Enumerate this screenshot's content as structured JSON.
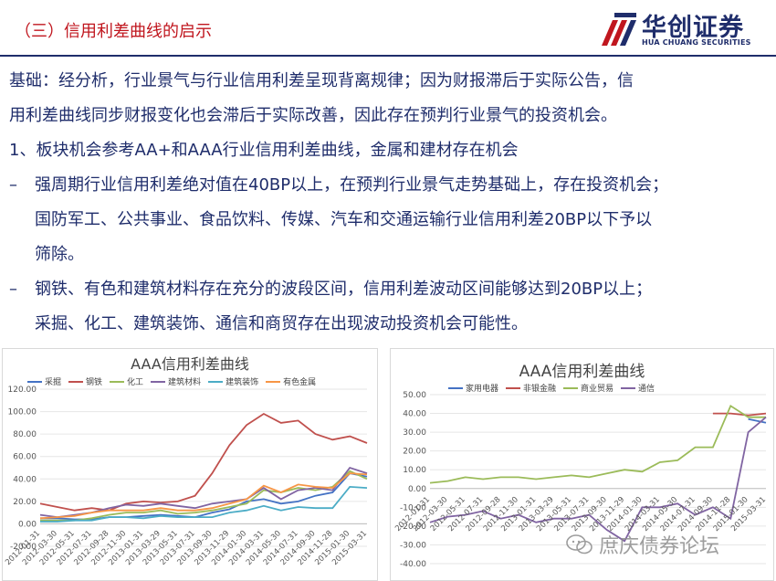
{
  "header": {
    "title": "（三）信用利差曲线的启示",
    "logo_cn": "华创证券",
    "logo_en": "HUA CHUANG SECURITIES"
  },
  "content": {
    "para1_line1": "基础：经分析，行业景气与行业信用利差呈现背离规律；因为财报滞后于实际公告，信",
    "para1_line2": "用利差曲线同步财报变化也会滞后于实际改善，因此存在预判行业景气的投资机会。",
    "heading1": "1、板块机会参考AA+和AAA行业信用利差曲线，金属和建材存在机会",
    "bullet_mark": "–",
    "bullet1_line1": "强周期行业信用利差绝对值在40BP以上，在预判行业景气走势基础上，存在投资机会；",
    "bullet1_line2": "国防军工、公共事业、食品饮料、传媒、汽车和交通运输行业信用利差20BP以下予以",
    "bullet1_line3": "筛除。",
    "bullet2_line1": "钢铁、有色和建筑材料存在充分的波段区间，信用利差波动区间能够达到20BP以上；",
    "bullet2_line2": "采掘、化工、建筑装饰、通信和商贸存在出现波动投资机会可能性。"
  },
  "watermark": "庶庆债券论坛",
  "chart_data": [
    {
      "type": "line",
      "title": "AAA信用利差曲线",
      "ylim": [
        -20,
        120
      ],
      "yticks": [
        "120.00",
        "100.00",
        "80.00",
        "60.00",
        "40.00",
        "20.00",
        "0.00",
        "-20.00"
      ],
      "x": [
        "2012-01-31",
        "2012-03-30",
        "2012-05-31",
        "2012-07-31",
        "2012-09-28",
        "2012-11-30",
        "2013-01-31",
        "2013-03-29",
        "2013-05-31",
        "2013-07-31",
        "2013-09-30",
        "2013-11-29",
        "2014-01-30",
        "2014-03-31",
        "2014-05-30",
        "2014-07-31",
        "2014-09-30",
        "2014-11-28",
        "2015-01-30",
        "2015-03-31"
      ],
      "grid": true,
      "legend": "top",
      "series": [
        {
          "name": "采掘",
          "color": "#4472c4",
          "values": [
            5,
            5,
            4,
            4,
            6,
            6,
            7,
            8,
            7,
            6,
            10,
            13,
            20,
            22,
            18,
            20,
            25,
            28,
            45,
            42
          ]
        },
        {
          "name": "钢铁",
          "color": "#c0504d",
          "values": [
            18,
            15,
            12,
            14,
            12,
            18,
            20,
            19,
            20,
            25,
            45,
            70,
            88,
            98,
            90,
            92,
            80,
            75,
            78,
            72
          ]
        },
        {
          "name": "化工",
          "color": "#9bbb59",
          "values": [
            3,
            3,
            3,
            5,
            8,
            10,
            10,
            12,
            9,
            10,
            12,
            15,
            18,
            30,
            28,
            32,
            30,
            33,
            47,
            40
          ]
        },
        {
          "name": "建筑材料",
          "color": "#8064a2",
          "values": [
            8,
            6,
            8,
            10,
            14,
            17,
            16,
            18,
            16,
            14,
            18,
            20,
            22,
            32,
            22,
            30,
            32,
            30,
            50,
            45
          ]
        },
        {
          "name": "建筑装饰",
          "color": "#4bacc6",
          "values": [
            2,
            2,
            3,
            3,
            6,
            6,
            5,
            7,
            6,
            6,
            6,
            10,
            12,
            16,
            12,
            15,
            14,
            14,
            33,
            32
          ]
        },
        {
          "name": "有色金属",
          "color": "#f79646",
          "values": [
            5,
            6,
            7,
            10,
            12,
            12,
            12,
            14,
            12,
            12,
            14,
            18,
            22,
            34,
            28,
            35,
            33,
            32,
            45,
            44
          ]
        }
      ]
    },
    {
      "type": "line",
      "title": "AAA信用利差曲线",
      "ylim": [
        -40,
        50
      ],
      "yticks": [
        "50.00",
        "40.00",
        "30.00",
        "20.00",
        "10.00",
        "0.00",
        "-10.00",
        "-20.00",
        "-30.00",
        "-40.00"
      ],
      "x": [
        "2012-01-31",
        "2012-03-30",
        "2012-05-31",
        "2012-07-31",
        "2012-09-28",
        "2012-11-30",
        "2013-01-31",
        "2013-03-29",
        "2013-05-31",
        "2013-07-31",
        "2013-09-30",
        "2013-11-29",
        "2014-01-30",
        "2014-03-31",
        "2014-05-30",
        "2014-07-31",
        "2014-09-30",
        "2014-11-28",
        "2015-01-30",
        "2015-03-31"
      ],
      "grid": true,
      "legend": "top",
      "series": [
        {
          "name": "家用电器",
          "color": "#4472c4",
          "values": [
            null,
            null,
            null,
            null,
            null,
            null,
            null,
            null,
            null,
            null,
            null,
            null,
            null,
            null,
            null,
            null,
            null,
            null,
            37,
            35
          ]
        },
        {
          "name": "非银金融",
          "color": "#c0504d",
          "values": [
            null,
            null,
            null,
            null,
            null,
            null,
            null,
            null,
            null,
            null,
            null,
            null,
            null,
            null,
            null,
            null,
            40,
            40,
            39,
            40
          ]
        },
        {
          "name": "商业贸易",
          "color": "#9bbb59",
          "values": [
            3,
            4,
            6,
            5,
            6,
            6,
            5,
            6,
            7,
            6,
            8,
            10,
            9,
            14,
            15,
            22,
            22,
            44,
            38,
            38
          ]
        },
        {
          "name": "通信",
          "color": "#8064a2",
          "values": [
            -18,
            -15,
            -14,
            -12,
            -16,
            -14,
            -18,
            -16,
            -16,
            -14,
            -22,
            -28,
            -10,
            -10,
            -8,
            -14,
            -10,
            -16,
            30,
            38
          ]
        }
      ]
    }
  ]
}
